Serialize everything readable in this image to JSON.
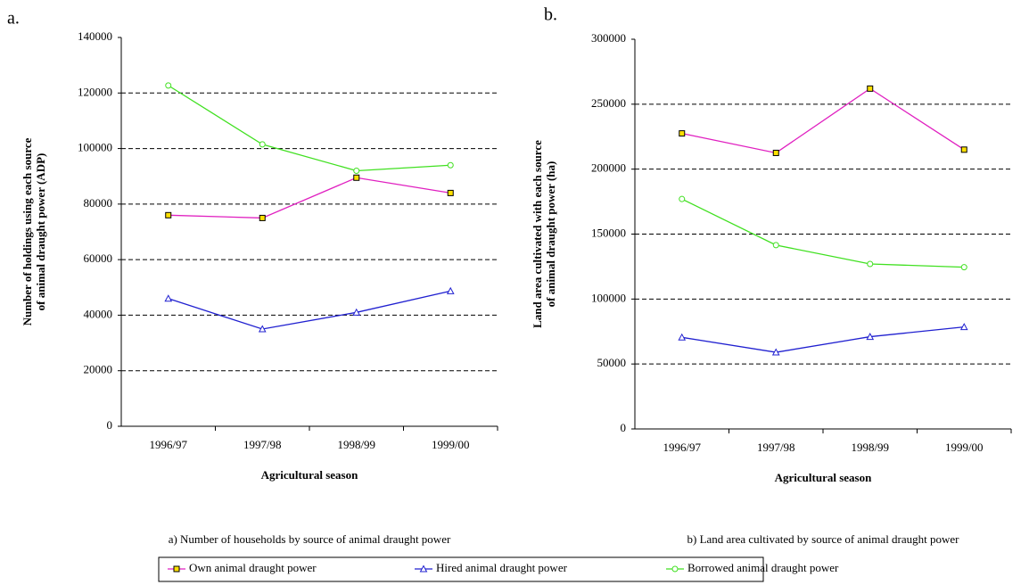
{
  "chart_data": [
    {
      "type": "line",
      "label": "a.",
      "ylabel": [
        "Number of holdings using each source",
        "of animal draught power (ADP)"
      ],
      "xlabel": "Agricultural season",
      "caption": "a) Number of households by source of animal draught power",
      "categories": [
        "1996/97",
        "1997/98",
        "1998/99",
        "1999/00"
      ],
      "ylim": [
        0,
        140000
      ],
      "yticks": [
        0,
        20000,
        40000,
        60000,
        80000,
        100000,
        120000,
        140000
      ],
      "grid": true,
      "series": [
        {
          "name": "Own animal draught power",
          "color": "#e020c0",
          "marker": "square",
          "values": [
            76000,
            75000,
            89500,
            84000
          ]
        },
        {
          "name": "Hired animal draught power",
          "color": "#2020d0",
          "marker": "triangle",
          "values": [
            46000,
            35000,
            41000,
            48700
          ]
        },
        {
          "name": "Borrowed animal draught power",
          "color": "#40e020",
          "marker": "circle",
          "values": [
            122700,
            101500,
            92000,
            94000
          ]
        }
      ]
    },
    {
      "type": "line",
      "label": "b.",
      "ylabel": [
        "Land area cultivated with each source",
        "of animal draught power (ha)"
      ],
      "xlabel": "Agricultural season",
      "caption": "b) Land area cultivated by source of animal draught power",
      "categories": [
        "1996/97",
        "1997/98",
        "1998/99",
        "1999/00"
      ],
      "ylim": [
        0,
        300000
      ],
      "yticks": [
        0,
        50000,
        100000,
        150000,
        200000,
        250000,
        300000
      ],
      "grid": true,
      "series": [
        {
          "color": "#e020c0",
          "marker": "square",
          "values": [
            227500,
            212500,
            262000,
            215000
          ]
        },
        {
          "color": "#2020d0",
          "marker": "triangle",
          "values": [
            70500,
            59000,
            71000,
            78500
          ]
        },
        {
          "color": "#40e020",
          "marker": "circle",
          "values": [
            177000,
            141500,
            127000,
            124500
          ]
        }
      ]
    }
  ]
}
